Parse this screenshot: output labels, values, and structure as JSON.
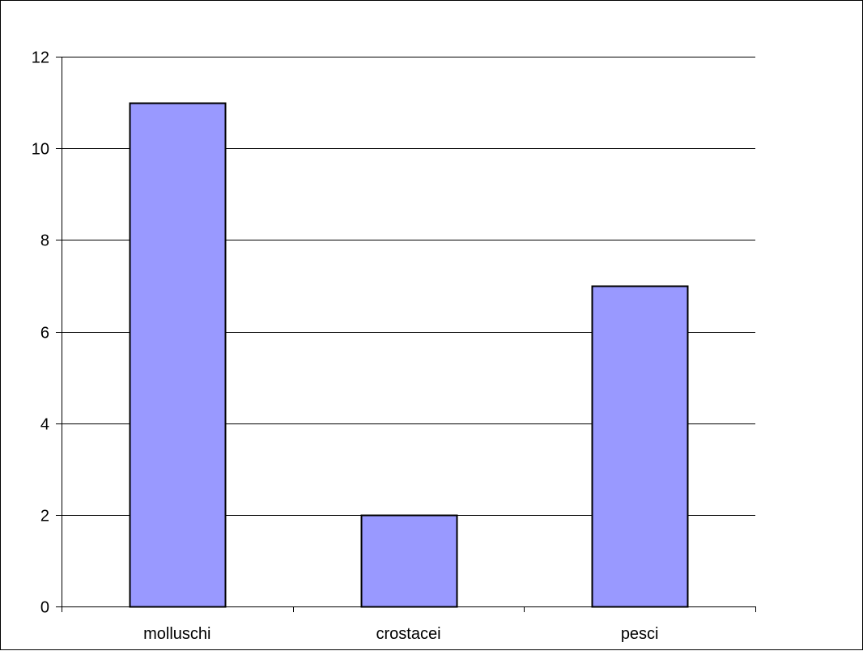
{
  "chart_data": {
    "type": "bar",
    "title": "",
    "xlabel": "",
    "ylabel": "",
    "categories": [
      "molluschi",
      "crostacei",
      "pesci"
    ],
    "values": [
      11,
      2,
      7
    ],
    "ylim": [
      0,
      12
    ],
    "yticks": [
      0,
      2,
      4,
      6,
      8,
      10,
      12
    ],
    "ytick_labels": [
      "0",
      "2",
      "4",
      "6",
      "8",
      "10",
      "12"
    ],
    "grid": true,
    "legend": "none",
    "bar_color": "#9999ff",
    "bar_edge_color": "#000000",
    "grid_color": "#000000",
    "background_color": "#ffffff"
  }
}
